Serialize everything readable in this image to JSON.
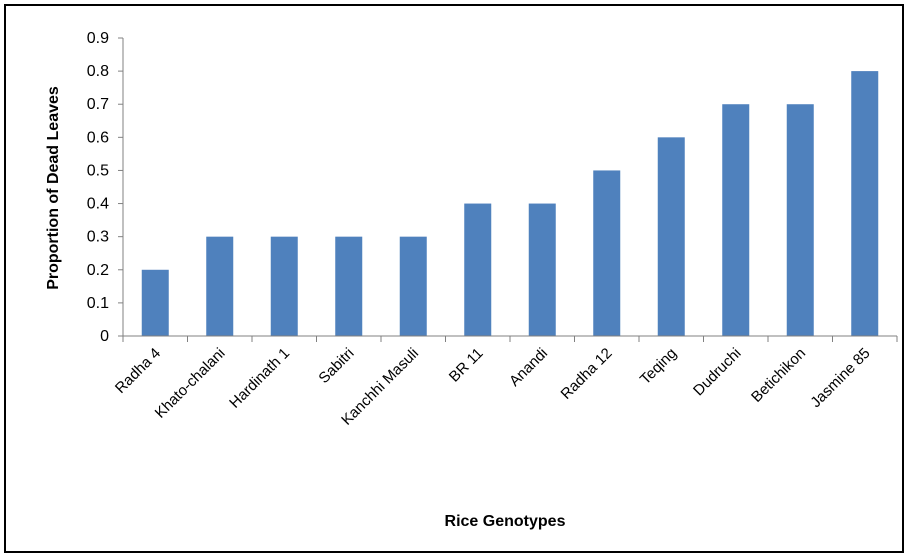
{
  "chart_data": {
    "type": "bar",
    "title": "",
    "xlabel": "Rice Genotypes",
    "ylabel": "Proportion of Dead Leaves",
    "categories": [
      "Radha 4",
      "Khato-chalani",
      "Hardinath 1",
      "Sabitri",
      "Kanchhi Masuli",
      "BR 11",
      "Anandi",
      "Radha 12",
      "Teqing",
      "Dudruchi",
      "Betichikon",
      "Jasmine 85"
    ],
    "values": [
      0.2,
      0.3,
      0.3,
      0.3,
      0.3,
      0.4,
      0.4,
      0.5,
      0.6,
      0.7,
      0.7,
      0.8
    ],
    "ylim": [
      0,
      0.9
    ],
    "yticks": [
      "0",
      "0.1",
      "0.2",
      "0.3",
      "0.4",
      "0.5",
      "0.6",
      "0.7",
      "0.8",
      "0.9"
    ],
    "grid": false,
    "legend": "none",
    "bar_color": "#4f81bd"
  }
}
